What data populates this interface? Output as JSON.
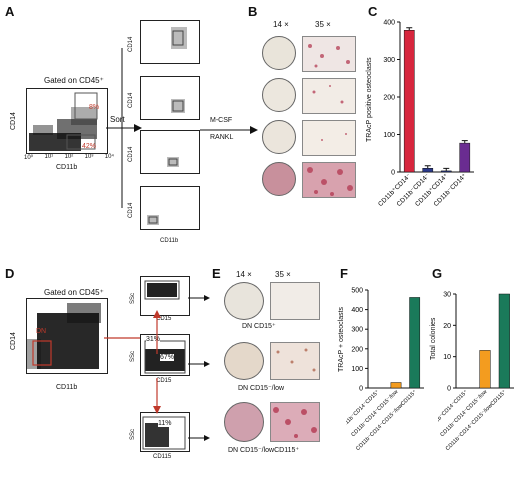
{
  "panels": {
    "A": {
      "letter": "A",
      "gate": "Gated on CD45⁺",
      "y_axis": "CD14",
      "x_axis": "CD11b",
      "pct_upper": "8%",
      "pct_lower": "42%",
      "sort_label": "Sort",
      "culture_label_1": "M-CSF",
      "culture_label_2": "RANKL",
      "ticks": [
        "10⁰",
        "10¹",
        "10²",
        "10³",
        "10⁴"
      ],
      "sorted_y_axis": "CD14",
      "sorted_x_axis": "CD11b"
    },
    "B": {
      "letter": "B",
      "col1": "14 ×",
      "col2": "35 ×"
    },
    "C": {
      "letter": "C",
      "ylabel": "TRAcP positive osteoclasts"
    },
    "D": {
      "letter": "D",
      "gate": "Gated on CD45⁺",
      "y_axis": "CD14",
      "x_axis": "CD11b",
      "dn_label": "DN",
      "ssc": "SSc",
      "cd15": "CD15",
      "cd115": "CD115",
      "pct_31": "31%",
      "pct_67": "67%",
      "pct_11": "11%"
    },
    "E": {
      "letter": "E",
      "col1": "14 ×",
      "col2": "35 ×",
      "row1": "DN CD15⁺",
      "row2": "DN CD15⁻/low",
      "row3": "DN CD15⁻/lowCD115⁺"
    },
    "F": {
      "letter": "F",
      "ylabel": "TRAcP + osteoclasts"
    },
    "G": {
      "letter": "G",
      "ylabel": "Total colonies"
    }
  },
  "chart_data": [
    {
      "type": "bar",
      "panel": "C",
      "categories": [
        "CD11b⁺CD14⁻",
        "CD11b⁻CD14⁻",
        "CD11b⁺CD14⁺",
        "CD11b⁻CD14⁺"
      ],
      "values": [
        378,
        10,
        3,
        77
      ],
      "colors": [
        "#d7263d",
        "#2b3a8c",
        "#2b3a8c",
        "#6a2c91"
      ],
      "ylim": [
        0,
        400
      ],
      "yticks": [
        0,
        100,
        200,
        300,
        400
      ],
      "error_bars": true
    },
    {
      "type": "bar",
      "panel": "F",
      "categories": [
        "CD11b⁻CD14⁻CD15⁺",
        "CD11b⁻CD14⁻CD15⁻/low",
        "CD11b⁻CD14⁻CD15⁻/lowCD115⁺"
      ],
      "values": [
        0,
        28,
        462
      ],
      "colors": [
        "#f39c1f",
        "#f39c1f",
        "#1a7a5a"
      ],
      "ylim": [
        0,
        500
      ],
      "yticks": [
        0,
        100,
        200,
        300,
        400,
        500
      ]
    },
    {
      "type": "bar",
      "panel": "G",
      "categories": [
        "CD11b⁻CD14⁻CD15⁺",
        "CD11b⁻CD14⁻CD15⁻/low",
        "CD11b⁻CD14⁻CD15⁻/lowCD115⁺"
      ],
      "values": [
        0,
        12,
        30
      ],
      "colors": [
        "#f39c1f",
        "#f39c1f",
        "#1a7a5a"
      ],
      "ylim": [
        0,
        30
      ],
      "yticks": [
        0,
        10,
        20,
        30
      ]
    }
  ]
}
